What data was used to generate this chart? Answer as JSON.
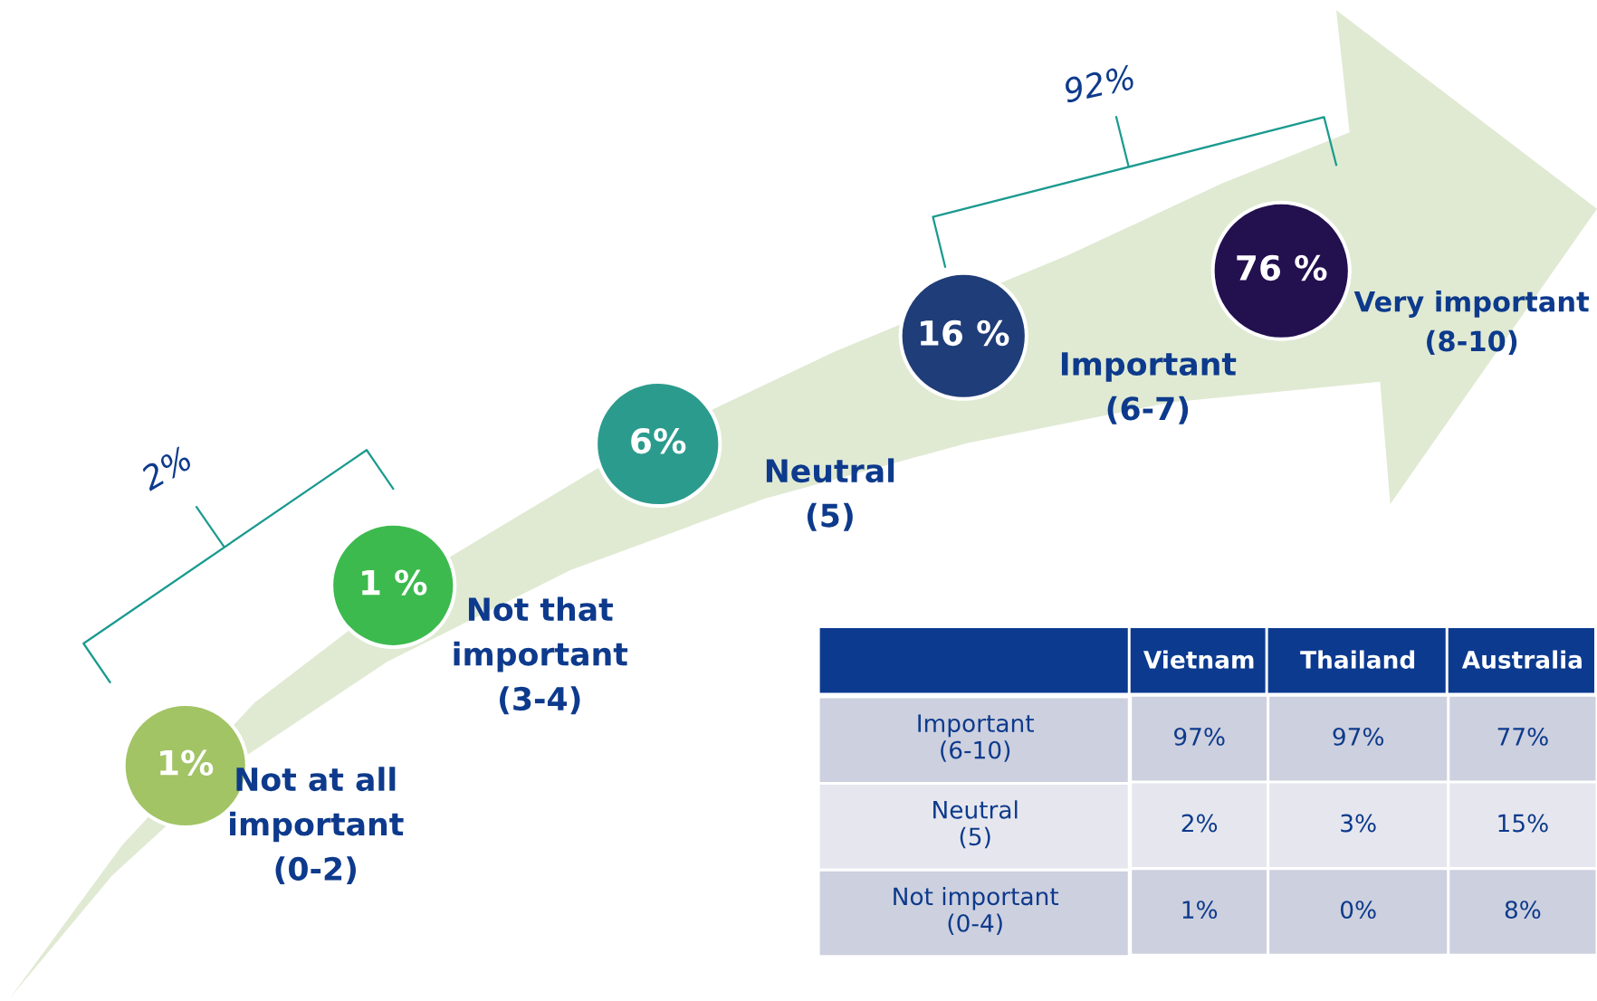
{
  "chart_data": [
    {
      "type": "other",
      "categories": [
        "Not at all\nimportant\n(0-2)",
        "Not that\nimportant\n(3-4)",
        "Neutral\n(5)",
        "Important\n(6-7)",
        "Very important\n(8-10)"
      ],
      "values": [
        1,
        1,
        6,
        16,
        76
      ],
      "value_labels": [
        "1%",
        "1 %",
        "6%",
        "16 %",
        "76 %"
      ],
      "colors": [
        "#a2c465",
        "#3dba4e",
        "#2b9b8d",
        "#1f3d78",
        "#23104f"
      ],
      "annotations": [
        "2%",
        "92%"
      ]
    },
    {
      "type": "other",
      "categories": [
        "Vietnam",
        "Thailand",
        "Australia"
      ],
      "y_categories": [
        "Important\n(6-10)",
        "Neutral\n(5)",
        "Not important\n(0-4)"
      ],
      "cell_labels": [
        [
          "97%",
          "97%",
          "77%"
        ],
        [
          "2%",
          "3%",
          "15%"
        ],
        [
          "1%",
          "0%",
          "8%"
        ]
      ]
    }
  ]
}
